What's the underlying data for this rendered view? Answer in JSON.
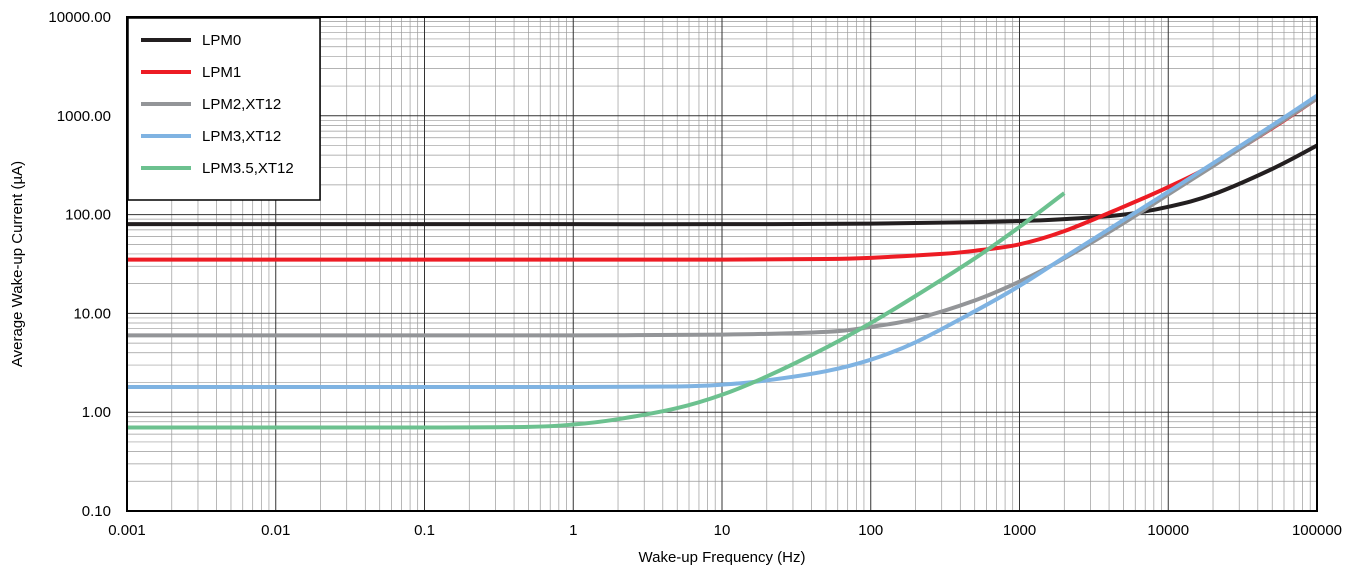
{
  "chart_data": {
    "type": "line",
    "title": "",
    "xlabel": "Wake-up Frequency (Hz)",
    "ylabel": "Average Wake-up Current (µA)",
    "x_scale": "log",
    "y_scale": "log",
    "xlim": [
      0.001,
      100000
    ],
    "ylim": [
      0.1,
      10000
    ],
    "x_ticks": [
      "0.001",
      "0.01",
      "0.1",
      "1",
      "10",
      "100",
      "1000",
      "10000",
      "100000"
    ],
    "y_ticks": [
      "0.10",
      "1.00",
      "10.00",
      "100.00",
      "1000.00",
      "10000.00"
    ],
    "grid": "major-and-minor",
    "legend_position": "top-left",
    "series": [
      {
        "name": "LPM0",
        "color": "#231f20",
        "x": [
          0.001,
          0.01,
          0.1,
          1,
          10,
          100,
          500,
          1000,
          2000,
          5000,
          10000,
          20000,
          50000,
          100000
        ],
        "y": [
          80,
          80,
          80,
          80,
          80,
          81,
          84,
          86,
          90,
          100,
          120,
          160,
          290,
          500
        ]
      },
      {
        "name": "LPM1",
        "color": "#ed1c24",
        "x": [
          0.001,
          0.01,
          0.1,
          1,
          10,
          50,
          100,
          300,
          500,
          1000,
          2000,
          5000,
          10000,
          20000,
          50000,
          100000
        ],
        "y": [
          35,
          35,
          35,
          35,
          35,
          35.5,
          36.5,
          40,
          43,
          50,
          68,
          120,
          190,
          320,
          750,
          1500
        ]
      },
      {
        "name": "LPM2,XT12",
        "color": "#939598",
        "x": [
          0.001,
          0.01,
          0.1,
          1,
          10,
          50,
          100,
          200,
          500,
          1000,
          2000,
          5000,
          10000,
          20000,
          50000,
          100000
        ],
        "y": [
          6,
          6,
          6,
          6,
          6.1,
          6.5,
          7.3,
          8.8,
          13.5,
          21,
          36,
          82,
          160,
          310,
          760,
          1500
        ]
      },
      {
        "name": "LPM3,XT12",
        "color": "#7fb3e2",
        "x": [
          0.001,
          0.01,
          0.1,
          1,
          5,
          10,
          20,
          50,
          100,
          200,
          500,
          1000,
          2000,
          5000,
          10000,
          20000,
          50000,
          100000
        ],
        "y": [
          1.8,
          1.8,
          1.8,
          1.8,
          1.82,
          1.9,
          2.1,
          2.6,
          3.4,
          5.1,
          10.5,
          19,
          37,
          88,
          170,
          330,
          800,
          1600
        ]
      },
      {
        "name": "LPM3.5,XT12",
        "color": "#6cc18f",
        "x": [
          0.001,
          0.01,
          0.1,
          0.5,
          1,
          2,
          5,
          10,
          20,
          50,
          100,
          200,
          500,
          1000,
          2000
        ],
        "y": [
          0.7,
          0.7,
          0.7,
          0.71,
          0.75,
          0.85,
          1.1,
          1.5,
          2.3,
          4.5,
          8,
          15,
          36,
          75,
          165
        ]
      }
    ]
  }
}
